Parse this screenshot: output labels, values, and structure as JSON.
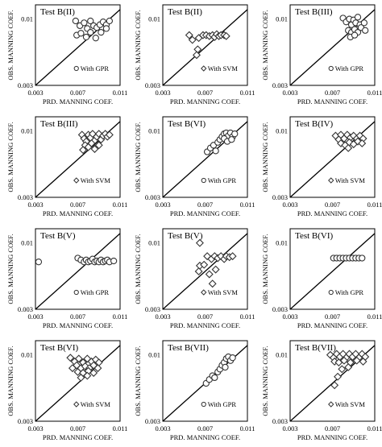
{
  "axis": {
    "xlabel": "PRD. MANNING COEF.",
    "ylabel": "OBS. MANNING COEF.",
    "x_ticks": [
      "0.003",
      "0.007",
      "0.011"
    ],
    "y_ticks": [
      "0.003",
      "0.01"
    ]
  },
  "chart_data": [
    {
      "type": "scatter",
      "title": "Test B(II)",
      "legend": "With GPR",
      "marker": "circle",
      "xlim": [
        0.003,
        0.011
      ],
      "ylim": [
        0.003,
        0.0115
      ],
      "diagonal": true,
      "points": [
        [
          0.0068,
          0.0098
        ],
        [
          0.0072,
          0.0093
        ],
        [
          0.0076,
          0.0096
        ],
        [
          0.0079,
          0.009
        ],
        [
          0.0082,
          0.0098
        ],
        [
          0.0085,
          0.0093
        ],
        [
          0.0088,
          0.0091
        ],
        [
          0.0091,
          0.0094
        ],
        [
          0.0094,
          0.0097
        ],
        [
          0.0097,
          0.0094
        ],
        [
          0.01,
          0.0098
        ],
        [
          0.0069,
          0.0083
        ],
        [
          0.0073,
          0.0085
        ],
        [
          0.0078,
          0.0081
        ],
        [
          0.0082,
          0.0086
        ],
        [
          0.0087,
          0.008
        ],
        [
          0.0092,
          0.0086
        ],
        [
          0.0097,
          0.009
        ]
      ]
    },
    {
      "type": "scatter",
      "title": "Test B(II)",
      "legend": "With SVM",
      "marker": "diamond",
      "xlim": [
        0.003,
        0.011
      ],
      "ylim": [
        0.003,
        0.0115
      ],
      "diagonal": true,
      "points": [
        [
          0.0055,
          0.0083
        ],
        [
          0.0058,
          0.0078
        ],
        [
          0.0064,
          0.008
        ],
        [
          0.0068,
          0.0083
        ],
        [
          0.0071,
          0.0083
        ],
        [
          0.0074,
          0.0082
        ],
        [
          0.0077,
          0.0083
        ],
        [
          0.0079,
          0.0081
        ],
        [
          0.0081,
          0.0084
        ],
        [
          0.0083,
          0.0082
        ],
        [
          0.0085,
          0.0083
        ],
        [
          0.0088,
          0.0083
        ],
        [
          0.009,
          0.0082
        ],
        [
          0.0063,
          0.0068
        ],
        [
          0.0062,
          0.0062
        ]
      ]
    },
    {
      "type": "scatter",
      "title": "Test B(III)",
      "legend": "With GPR",
      "marker": "circle",
      "xlim": [
        0.003,
        0.011
      ],
      "ylim": [
        0.003,
        0.0115
      ],
      "diagonal": true,
      "points": [
        [
          0.008,
          0.0101
        ],
        [
          0.0083,
          0.0097
        ],
        [
          0.0086,
          0.01
        ],
        [
          0.0088,
          0.0094
        ],
        [
          0.009,
          0.0099
        ],
        [
          0.0092,
          0.0096
        ],
        [
          0.0094,
          0.0102
        ],
        [
          0.0096,
          0.0094
        ],
        [
          0.0085,
          0.0088
        ],
        [
          0.0088,
          0.0086
        ],
        [
          0.0091,
          0.0089
        ],
        [
          0.0094,
          0.0086
        ],
        [
          0.0097,
          0.0091
        ],
        [
          0.01,
          0.0096
        ],
        [
          0.0101,
          0.0088
        ],
        [
          0.0087,
          0.0081
        ],
        [
          0.0091,
          0.0083
        ]
      ]
    },
    {
      "type": "scatter",
      "title": "Test B(III)",
      "legend": "With SVM",
      "marker": "diamond",
      "xlim": [
        0.003,
        0.011
      ],
      "ylim": [
        0.003,
        0.0115
      ],
      "diagonal": true,
      "points": [
        [
          0.0074,
          0.0096
        ],
        [
          0.0076,
          0.0092
        ],
        [
          0.0078,
          0.0089
        ],
        [
          0.008,
          0.0096
        ],
        [
          0.0082,
          0.0093
        ],
        [
          0.0084,
          0.0097
        ],
        [
          0.0086,
          0.009
        ],
        [
          0.0088,
          0.0094
        ],
        [
          0.009,
          0.0097
        ],
        [
          0.0092,
          0.0091
        ],
        [
          0.0094,
          0.0095
        ],
        [
          0.0096,
          0.0097
        ],
        [
          0.0098,
          0.0094
        ],
        [
          0.01,
          0.0096
        ],
        [
          0.0077,
          0.0085
        ],
        [
          0.008,
          0.0083
        ],
        [
          0.0083,
          0.0087
        ],
        [
          0.0086,
          0.0081
        ],
        [
          0.009,
          0.0085
        ],
        [
          0.0075,
          0.008
        ]
      ]
    },
    {
      "type": "scatter",
      "title": "Test B(VI)",
      "legend": "With GPR",
      "marker": "circle",
      "xlim": [
        0.003,
        0.011
      ],
      "ylim": [
        0.003,
        0.0115
      ],
      "diagonal": true,
      "points": [
        [
          0.0072,
          0.0078
        ],
        [
          0.0075,
          0.0082
        ],
        [
          0.0078,
          0.0085
        ],
        [
          0.008,
          0.0079
        ],
        [
          0.0082,
          0.0088
        ],
        [
          0.0084,
          0.0091
        ],
        [
          0.0086,
          0.0094
        ],
        [
          0.0088,
          0.0097
        ],
        [
          0.009,
          0.0098
        ],
        [
          0.0092,
          0.0095
        ],
        [
          0.0094,
          0.0098
        ],
        [
          0.0096,
          0.0094
        ],
        [
          0.0098,
          0.0097
        ],
        [
          0.0088,
          0.0092
        ],
        [
          0.0091,
          0.0089
        ],
        [
          0.0095,
          0.0091
        ]
      ]
    },
    {
      "type": "scatter",
      "title": "Test B(IV)",
      "legend": "With SVM",
      "marker": "diamond",
      "xlim": [
        0.003,
        0.011
      ],
      "ylim": [
        0.003,
        0.0115
      ],
      "diagonal": true,
      "points": [
        [
          0.0073,
          0.0095
        ],
        [
          0.0076,
          0.0091
        ],
        [
          0.0078,
          0.0096
        ],
        [
          0.0081,
          0.0092
        ],
        [
          0.0084,
          0.0096
        ],
        [
          0.0087,
          0.0093
        ],
        [
          0.009,
          0.0095
        ],
        [
          0.0093,
          0.0092
        ],
        [
          0.0096,
          0.0095
        ],
        [
          0.0099,
          0.0092
        ],
        [
          0.0078,
          0.0087
        ],
        [
          0.0082,
          0.0085
        ],
        [
          0.0086,
          0.0088
        ],
        [
          0.009,
          0.0086
        ],
        [
          0.0094,
          0.0089
        ],
        [
          0.0098,
          0.0087
        ],
        [
          0.0085,
          0.0082
        ]
      ]
    },
    {
      "type": "scatter",
      "title": "Test B(V)",
      "legend": "With GPR",
      "marker": "circle",
      "xlim": [
        0.003,
        0.011
      ],
      "ylim": [
        0.003,
        0.0115
      ],
      "diagonal": true,
      "points": [
        [
          0.0033,
          0.008
        ],
        [
          0.007,
          0.0084
        ],
        [
          0.0073,
          0.0082
        ],
        [
          0.0076,
          0.008
        ],
        [
          0.0078,
          0.0082
        ],
        [
          0.008,
          0.008
        ],
        [
          0.0082,
          0.0081
        ],
        [
          0.0084,
          0.0083
        ],
        [
          0.0086,
          0.008
        ],
        [
          0.0088,
          0.0081
        ],
        [
          0.009,
          0.008
        ],
        [
          0.0092,
          0.0082
        ],
        [
          0.0094,
          0.008
        ],
        [
          0.0096,
          0.0081
        ],
        [
          0.0098,
          0.0082
        ],
        [
          0.01,
          0.008
        ],
        [
          0.0104,
          0.0081
        ]
      ]
    },
    {
      "type": "scatter",
      "title": "Test B(V)",
      "legend": "With SVM",
      "marker": "diamond",
      "xlim": [
        0.003,
        0.011
      ],
      "ylim": [
        0.003,
        0.0115
      ],
      "diagonal": true,
      "points": [
        [
          0.0065,
          0.01
        ],
        [
          0.0072,
          0.0086
        ],
        [
          0.0076,
          0.0083
        ],
        [
          0.0079,
          0.0086
        ],
        [
          0.0082,
          0.0084
        ],
        [
          0.0085,
          0.0086
        ],
        [
          0.0088,
          0.0083
        ],
        [
          0.009,
          0.0086
        ],
        [
          0.0093,
          0.0085
        ],
        [
          0.0096,
          0.0086
        ],
        [
          0.0065,
          0.0076
        ],
        [
          0.0069,
          0.0077
        ],
        [
          0.0064,
          0.007
        ],
        [
          0.0074,
          0.0067
        ],
        [
          0.008,
          0.0072
        ],
        [
          0.0077,
          0.0057
        ]
      ]
    },
    {
      "type": "scatter",
      "title": "Test B(VI)",
      "legend": "With GPR",
      "marker": "circle",
      "xlim": [
        0.003,
        0.011
      ],
      "ylim": [
        0.003,
        0.0115
      ],
      "diagonal": true,
      "points": [
        [
          0.0071,
          0.0084
        ],
        [
          0.0074,
          0.0084
        ],
        [
          0.0077,
          0.0084
        ],
        [
          0.008,
          0.0084
        ],
        [
          0.0083,
          0.0084
        ],
        [
          0.0086,
          0.0084
        ],
        [
          0.0089,
          0.0084
        ],
        [
          0.0092,
          0.0084
        ],
        [
          0.0095,
          0.0084
        ],
        [
          0.0098,
          0.0084
        ]
      ]
    },
    {
      "type": "scatter",
      "title": "Test B(VI)",
      "legend": "With SVM",
      "marker": "diamond",
      "xlim": [
        0.003,
        0.011
      ],
      "ylim": [
        0.003,
        0.0115
      ],
      "diagonal": true,
      "points": [
        [
          0.0063,
          0.0097
        ],
        [
          0.0067,
          0.0093
        ],
        [
          0.0071,
          0.0096
        ],
        [
          0.0075,
          0.0092
        ],
        [
          0.0079,
          0.0096
        ],
        [
          0.0083,
          0.0093
        ],
        [
          0.0087,
          0.0095
        ],
        [
          0.009,
          0.0092
        ],
        [
          0.0065,
          0.0086
        ],
        [
          0.0069,
          0.0089
        ],
        [
          0.0073,
          0.0086
        ],
        [
          0.0077,
          0.0088
        ],
        [
          0.0081,
          0.0086
        ],
        [
          0.0085,
          0.0089
        ],
        [
          0.0089,
          0.0086
        ],
        [
          0.007,
          0.0082
        ],
        [
          0.0075,
          0.0081
        ],
        [
          0.008,
          0.0083
        ],
        [
          0.0085,
          0.0081
        ],
        [
          0.0073,
          0.0076
        ],
        [
          0.0079,
          0.0078
        ]
      ]
    },
    {
      "type": "scatter",
      "title": "Test B(VII)",
      "legend": "With GPR",
      "marker": "circle",
      "xlim": [
        0.003,
        0.011
      ],
      "ylim": [
        0.003,
        0.0115
      ],
      "diagonal": true,
      "points": [
        [
          0.0071,
          0.007
        ],
        [
          0.0074,
          0.0074
        ],
        [
          0.0077,
          0.0078
        ],
        [
          0.0079,
          0.0076
        ],
        [
          0.0082,
          0.0082
        ],
        [
          0.0084,
          0.0085
        ],
        [
          0.0086,
          0.0089
        ],
        [
          0.0088,
          0.0092
        ],
        [
          0.009,
          0.0096
        ],
        [
          0.0092,
          0.0098
        ],
        [
          0.0094,
          0.0094
        ],
        [
          0.0096,
          0.0097
        ],
        [
          0.0089,
          0.0087
        ]
      ]
    },
    {
      "type": "scatter",
      "title": "Test B(VII)",
      "legend": "With SVM",
      "marker": "diamond",
      "xlim": [
        0.003,
        0.011
      ],
      "ylim": [
        0.003,
        0.0115
      ],
      "diagonal": true,
      "points": [
        [
          0.0068,
          0.01
        ],
        [
          0.0071,
          0.0097
        ],
        [
          0.0074,
          0.0101
        ],
        [
          0.0077,
          0.0098
        ],
        [
          0.008,
          0.0101
        ],
        [
          0.0083,
          0.0097
        ],
        [
          0.0086,
          0.0101
        ],
        [
          0.0089,
          0.0098
        ],
        [
          0.0092,
          0.0101
        ],
        [
          0.0095,
          0.0097
        ],
        [
          0.0098,
          0.0101
        ],
        [
          0.0101,
          0.0098
        ],
        [
          0.0072,
          0.0093
        ],
        [
          0.0076,
          0.0092
        ],
        [
          0.0081,
          0.0094
        ],
        [
          0.0087,
          0.0092
        ],
        [
          0.0093,
          0.0094
        ],
        [
          0.0099,
          0.0093
        ],
        [
          0.0079,
          0.0085
        ],
        [
          0.0085,
          0.0087
        ],
        [
          0.0075,
          0.0077
        ],
        [
          0.0072,
          0.0068
        ]
      ]
    }
  ]
}
